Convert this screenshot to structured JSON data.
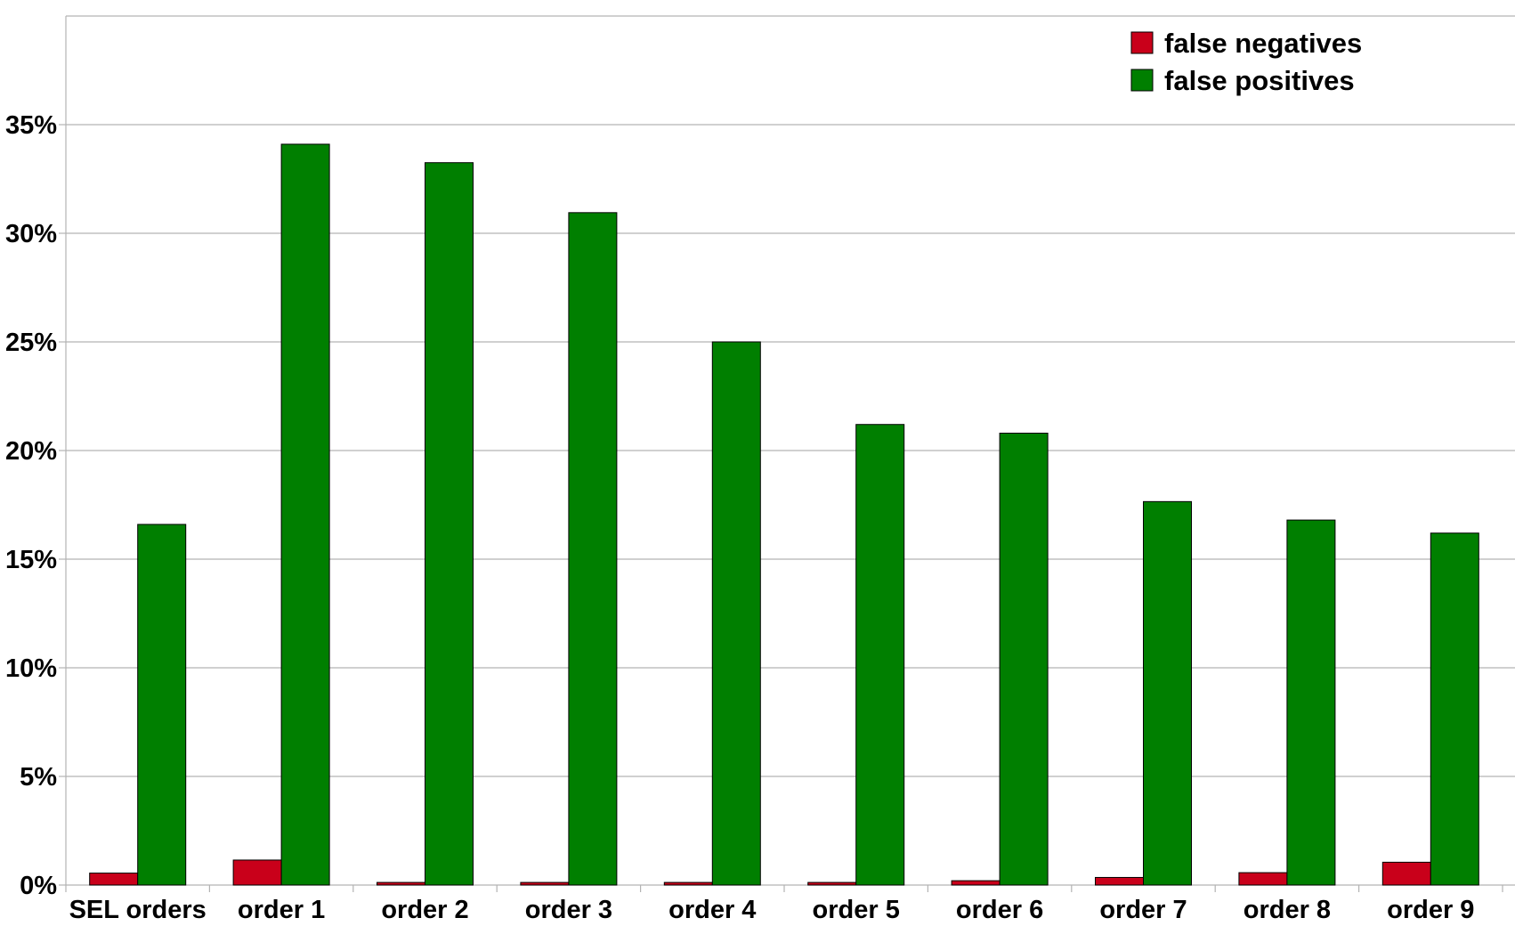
{
  "chart_data": {
    "type": "bar",
    "title": "",
    "xlabel": "",
    "ylabel": "",
    "categories": [
      "SEL orders",
      "order 1",
      "order 2",
      "order 3",
      "order 4",
      "order 5",
      "order 6",
      "order 7",
      "order 8",
      "order 9"
    ],
    "series": [
      {
        "name": "false negatives",
        "color": "#c9001a",
        "values": [
          0.55,
          1.15,
          0.12,
          0.12,
          0.12,
          0.12,
          0.2,
          0.35,
          0.57,
          1.05
        ]
      },
      {
        "name": "false positives",
        "color": "#007f00",
        "values": [
          16.6,
          34.1,
          33.25,
          30.95,
          25.0,
          21.2,
          20.8,
          17.65,
          16.8,
          16.2
        ]
      }
    ],
    "ylim": [
      0,
      40
    ],
    "yticks": [
      "0%",
      "5%",
      "10%",
      "15%",
      "20%",
      "25%",
      "30%",
      "35%"
    ],
    "ytick_values": [
      0,
      5,
      10,
      15,
      20,
      25,
      30,
      35
    ],
    "grid": true,
    "legend_position": "top-right"
  }
}
